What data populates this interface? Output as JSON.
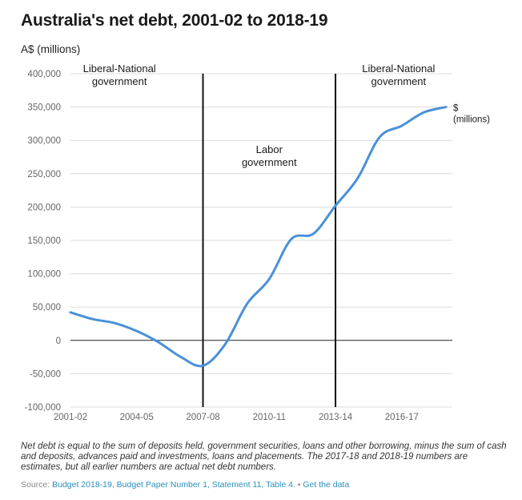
{
  "header": {
    "title": "Australia's net debt, 2001-02 to 2018-19",
    "subtitle": "A$ (millions)"
  },
  "footer": {
    "notes": "Net debt is equal to the sum of deposits held, government securities, loans and other borrowing, minus the sum of cash and deposits, advances paid and investments, loans and placements. The 2017-18 and 2018-19 numbers are estimates, but all earlier numbers are actual net debt numbers.",
    "source_prefix": "Source:",
    "source_link": "Budget 2018-19, Budget Paper Number 1, Statement 11, Table 4.",
    "separator": "•",
    "data_link": "Get the data"
  },
  "chart_data": {
    "type": "line",
    "x": [
      "2001-02",
      "2002-03",
      "2003-04",
      "2004-05",
      "2005-06",
      "2006-07",
      "2007-08",
      "2008-09",
      "2009-10",
      "2010-11",
      "2011-12",
      "2012-13",
      "2013-14",
      "2014-15",
      "2015-16",
      "2016-17",
      "2017-18",
      "2018-19"
    ],
    "x_tick_labels": [
      "2001-02",
      "2004-05",
      "2007-08",
      "2010-11",
      "2013-14",
      "2016-17"
    ],
    "series": [
      {
        "name": "$ (millions)",
        "color": "#4a90d9",
        "values": [
          42000,
          32000,
          26000,
          14000,
          -3000,
          -25000,
          -38000,
          -6000,
          55000,
          92000,
          152000,
          160000,
          202000,
          243000,
          305000,
          322000,
          342000,
          350000
        ]
      }
    ],
    "ylim": [
      -100000,
      400000
    ],
    "yticks": [
      -100000,
      -50000,
      0,
      50000,
      100000,
      150000,
      200000,
      250000,
      300000,
      350000,
      400000
    ],
    "ytick_labels": [
      "-100,000",
      "-50,000",
      "0",
      "50,000",
      "100,000",
      "150,000",
      "200,000",
      "250,000",
      "300,000",
      "350,000",
      "400,000"
    ],
    "grid": true,
    "dividers": [
      {
        "at": "2007-08"
      },
      {
        "at": "2013-14"
      }
    ],
    "annotations": [
      {
        "lines": [
          "Liberal-National",
          "government"
        ],
        "anchor_x": "2003-04",
        "anchor_y": 400000
      },
      {
        "lines": [
          "Labor",
          "government"
        ],
        "anchor_x": "2010-11",
        "anchor_y": 245000
      },
      {
        "lines": [
          "Liberal-National",
          "government"
        ],
        "anchor_x": "2016-17",
        "anchor_y": 400000
      }
    ]
  }
}
